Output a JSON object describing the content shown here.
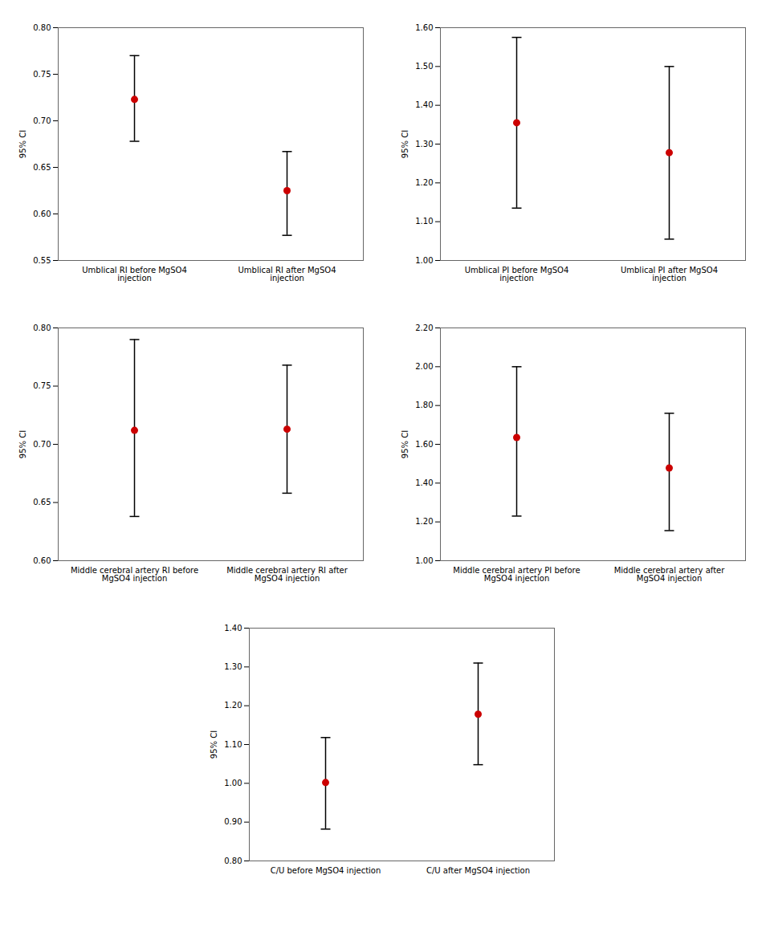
{
  "chart_data": [
    {
      "type": "errorbar",
      "ylabel": "95% CI",
      "categories": [
        "Umblical RI before MgSO4\ninjection",
        "Umblical RI after MgSO4\ninjection"
      ],
      "values": [
        0.723,
        0.625
      ],
      "ci_low": [
        0.678,
        0.577
      ],
      "ci_high": [
        0.77,
        0.667
      ],
      "color": "#cc0000",
      "ylim": [
        0.55,
        0.8
      ],
      "yticks": [
        0.55,
        {
          "value": 0.6,
          "label": "0.60"
        },
        0.65,
        {
          "value": 0.7,
          "label": "0.70"
        },
        0.75,
        {
          "value": 0.8,
          "label": "0.80"
        }
      ]
    },
    {
      "type": "errorbar",
      "ylabel": "95% CI",
      "categories": [
        "Umblical PI before MgSO4\ninjection",
        "Umblical PI after MgSO4\ninjection"
      ],
      "values": [
        1.355,
        1.278
      ],
      "ci_low": [
        1.135,
        1.055
      ],
      "ci_high": [
        1.575,
        1.5
      ],
      "color": "#cc0000",
      "ylim": [
        1.0,
        1.6
      ],
      "yticks": [
        {
          "value": 1.0,
          "label": "1.00"
        },
        {
          "value": 1.1,
          "label": "1.10"
        },
        {
          "value": 1.2,
          "label": "1.20"
        },
        {
          "value": 1.3,
          "label": "1.30"
        },
        {
          "value": 1.4,
          "label": "1.40"
        },
        {
          "value": 1.5,
          "label": "1.50"
        },
        {
          "value": 1.6,
          "label": "1.60"
        }
      ]
    },
    {
      "type": "errorbar",
      "ylabel": "95% CI",
      "categories": [
        "Middle cerebral artery RI before\nMgSO4 injection",
        "Middle cerebral artery RI after\nMgSO4 injection"
      ],
      "values": [
        0.712,
        0.713
      ],
      "ci_low": [
        0.638,
        0.658
      ],
      "ci_high": [
        0.79,
        0.768
      ],
      "color": "#cc0000",
      "ylim": [
        0.6,
        0.8
      ],
      "yticks": [
        {
          "value": 0.6,
          "label": "0.60"
        },
        0.65,
        {
          "value": 0.7,
          "label": "0.70"
        },
        0.75,
        {
          "value": 0.8,
          "label": "0.80"
        }
      ]
    },
    {
      "type": "errorbar",
      "ylabel": "95% CI",
      "categories": [
        "Middle cerebral artery PI before\nMgSO4 injection",
        "Middle cerebral artery after\nMgSO4 injection"
      ],
      "values": [
        1.635,
        1.478
      ],
      "ci_low": [
        1.23,
        1.155
      ],
      "ci_high": [
        2.0,
        1.76
      ],
      "color": "#cc0000",
      "ylim": [
        1.0,
        2.2
      ],
      "yticks": [
        {
          "value": 1.0,
          "label": "1.00"
        },
        {
          "value": 1.2,
          "label": "1.20"
        },
        {
          "value": 1.4,
          "label": "1.40"
        },
        {
          "value": 1.6,
          "label": "1.60"
        },
        {
          "value": 1.8,
          "label": "1.80"
        },
        {
          "value": 2.0,
          "label": "2.00"
        },
        {
          "value": 2.2,
          "label": "2.20"
        }
      ]
    },
    {
      "type": "errorbar",
      "ylabel": "95% CI",
      "categories": [
        "C/U before MgSO4 injection",
        "C/U after MgSO4 injection"
      ],
      "values": [
        1.002,
        1.178
      ],
      "ci_low": [
        0.882,
        1.048
      ],
      "ci_high": [
        1.118,
        1.31
      ],
      "color": "#cc0000",
      "ylim": [
        0.8,
        1.4
      ],
      "yticks": [
        {
          "value": 0.8,
          "label": "0.80"
        },
        {
          "value": 0.9,
          "label": "0.90"
        },
        {
          "value": 1.0,
          "label": "1.00"
        },
        {
          "value": 1.1,
          "label": "1.10"
        },
        {
          "value": 1.2,
          "label": "1.20"
        },
        {
          "value": 1.3,
          "label": "1.30"
        },
        {
          "value": 1.4,
          "label": "1.40"
        }
      ]
    }
  ]
}
